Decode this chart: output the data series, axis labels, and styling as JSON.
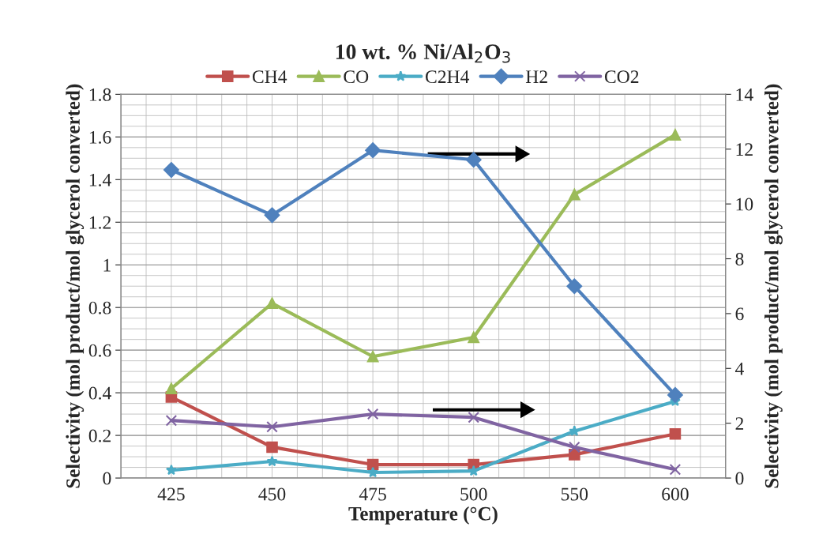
{
  "chart_data": {
    "type": "line",
    "title": "10 wt. % Ni/Al$_{2}$O$_{3}$",
    "xlabel": "Temperature (°C)",
    "ylabel": "Selectivity (mol product/mol glycerol converted)",
    "y2label": "Selectivity (mol product/mol glycerol converted)",
    "categories": [
      "425",
      "450",
      "475",
      "500",
      "550",
      "600"
    ],
    "series": [
      {
        "name": "CH4",
        "color": "#c0504d",
        "marker": "square",
        "values": [
          0.38,
          0.145,
          0.063,
          0.063,
          0.11,
          0.207
        ]
      },
      {
        "name": "CO",
        "color": "#9bbb59",
        "marker": "triangle",
        "values": [
          0.42,
          0.82,
          0.57,
          0.66,
          1.33,
          1.61
        ]
      },
      {
        "name": "C2H4",
        "color": "#4bacc6",
        "marker": "star",
        "values": [
          0.037,
          0.078,
          0.026,
          0.033,
          0.22,
          0.36
        ]
      },
      {
        "name": "H2",
        "color": "#4f81bd",
        "marker": "diamond",
        "axis": "y2",
        "values": [
          11.24,
          9.59,
          11.96,
          11.61,
          7.0,
          3.03
        ]
      },
      {
        "name": "CO2",
        "color": "#8064a2",
        "marker": "cross",
        "values": [
          0.27,
          0.24,
          0.3,
          0.285,
          0.145,
          0.04
        ]
      }
    ],
    "ylim": [
      0,
      1.8
    ],
    "yticks": [
      0,
      0.2,
      0.4,
      0.6,
      0.8,
      1,
      1.2,
      1.4,
      1.6,
      1.8
    ],
    "y2lim": [
      0,
      14
    ],
    "y2ticks": [
      0,
      2,
      4,
      6,
      8,
      10,
      12,
      14
    ],
    "grid": true,
    "legend": "top",
    "line_style": "solid"
  }
}
